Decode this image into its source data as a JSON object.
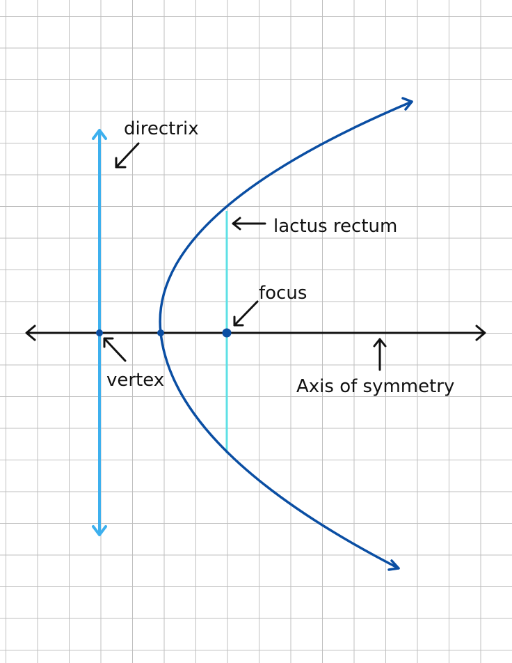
{
  "labels": {
    "directrix": "directrix",
    "latus_rectum": "lactus rectum",
    "focus": "focus",
    "vertex": "vertex",
    "axis": "Axis of symmetry"
  },
  "colors": {
    "parabola": "#0a4ea3",
    "directrix": "#3db0ee",
    "latus_rectum": "#5ee0e6",
    "axis": "#111111",
    "points": "#0a4ea3",
    "grid": "#bfbfbf"
  }
}
